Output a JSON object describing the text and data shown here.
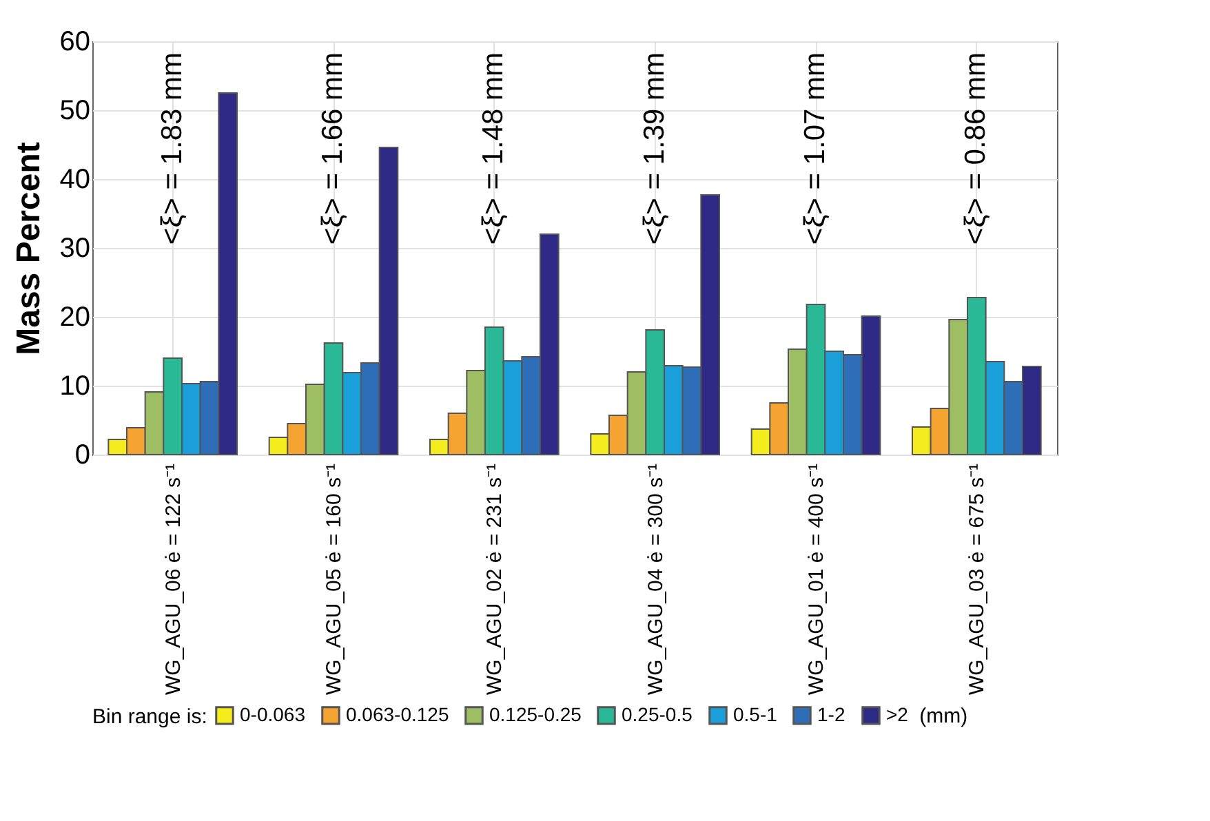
{
  "chart_data": {
    "type": "bar",
    "ylabel": "Mass Percent",
    "legend_title": "Bin range is:",
    "legend": "bottom",
    "grid": true,
    "categories": [
      "WG_AGU_06 ė = 122 s⁻¹",
      "WG_AGU_05 ė = 160 s⁻¹",
      "WG_AGU_02 ė = 231 s⁻¹",
      "WG_AGU_04 ė = 300 s⁻¹",
      "WG_AGU_01 ė = 400 s⁻¹",
      "WG_AGU_03 ė = 675 s⁻¹"
    ],
    "ylim": [
      0,
      60
    ],
    "yticks": [
      0,
      10,
      20,
      30,
      40,
      50,
      60
    ],
    "annotations": [
      "<ξ> = 1.83 mm",
      "<ξ> = 1.66 mm",
      "<ξ> = 1.48 mm",
      "<ξ> = 1.39 mm",
      "<ξ> = 1.07 mm",
      "<ξ> = 0.86 mm",
      "(mm)"
    ],
    "series": [
      {
        "name": "0-0.063",
        "color": "#f4ec1c",
        "values": [
          2.2,
          2.5,
          2.2,
          3.0,
          3.7,
          4.0
        ]
      },
      {
        "name": "0.063-0.125",
        "color": "#f6a431",
        "values": [
          3.9,
          4.5,
          6.0,
          5.7,
          7.5,
          6.7
        ]
      },
      {
        "name": "0.125-0.25",
        "color": "#9dbe62",
        "values": [
          9.1,
          10.2,
          12.2,
          12.0,
          15.3,
          19.6
        ]
      },
      {
        "name": "0.25-0.5",
        "color": "#2ab997",
        "values": [
          14.0,
          16.2,
          18.5,
          18.1,
          21.8,
          22.8
        ]
      },
      {
        "name": "0.5-1",
        "color": "#1a9fdb",
        "values": [
          10.3,
          11.9,
          13.6,
          12.9,
          15.0,
          13.5
        ]
      },
      {
        "name": "1-2",
        "color": "#2e6eb8",
        "values": [
          10.6,
          13.3,
          14.2,
          12.7,
          14.5,
          10.6
        ]
      },
      {
        "name": ">2",
        "color": "#2e2a85",
        "values": [
          52.5,
          44.6,
          32.0,
          37.7,
          20.1,
          12.8
        ]
      }
    ]
  }
}
